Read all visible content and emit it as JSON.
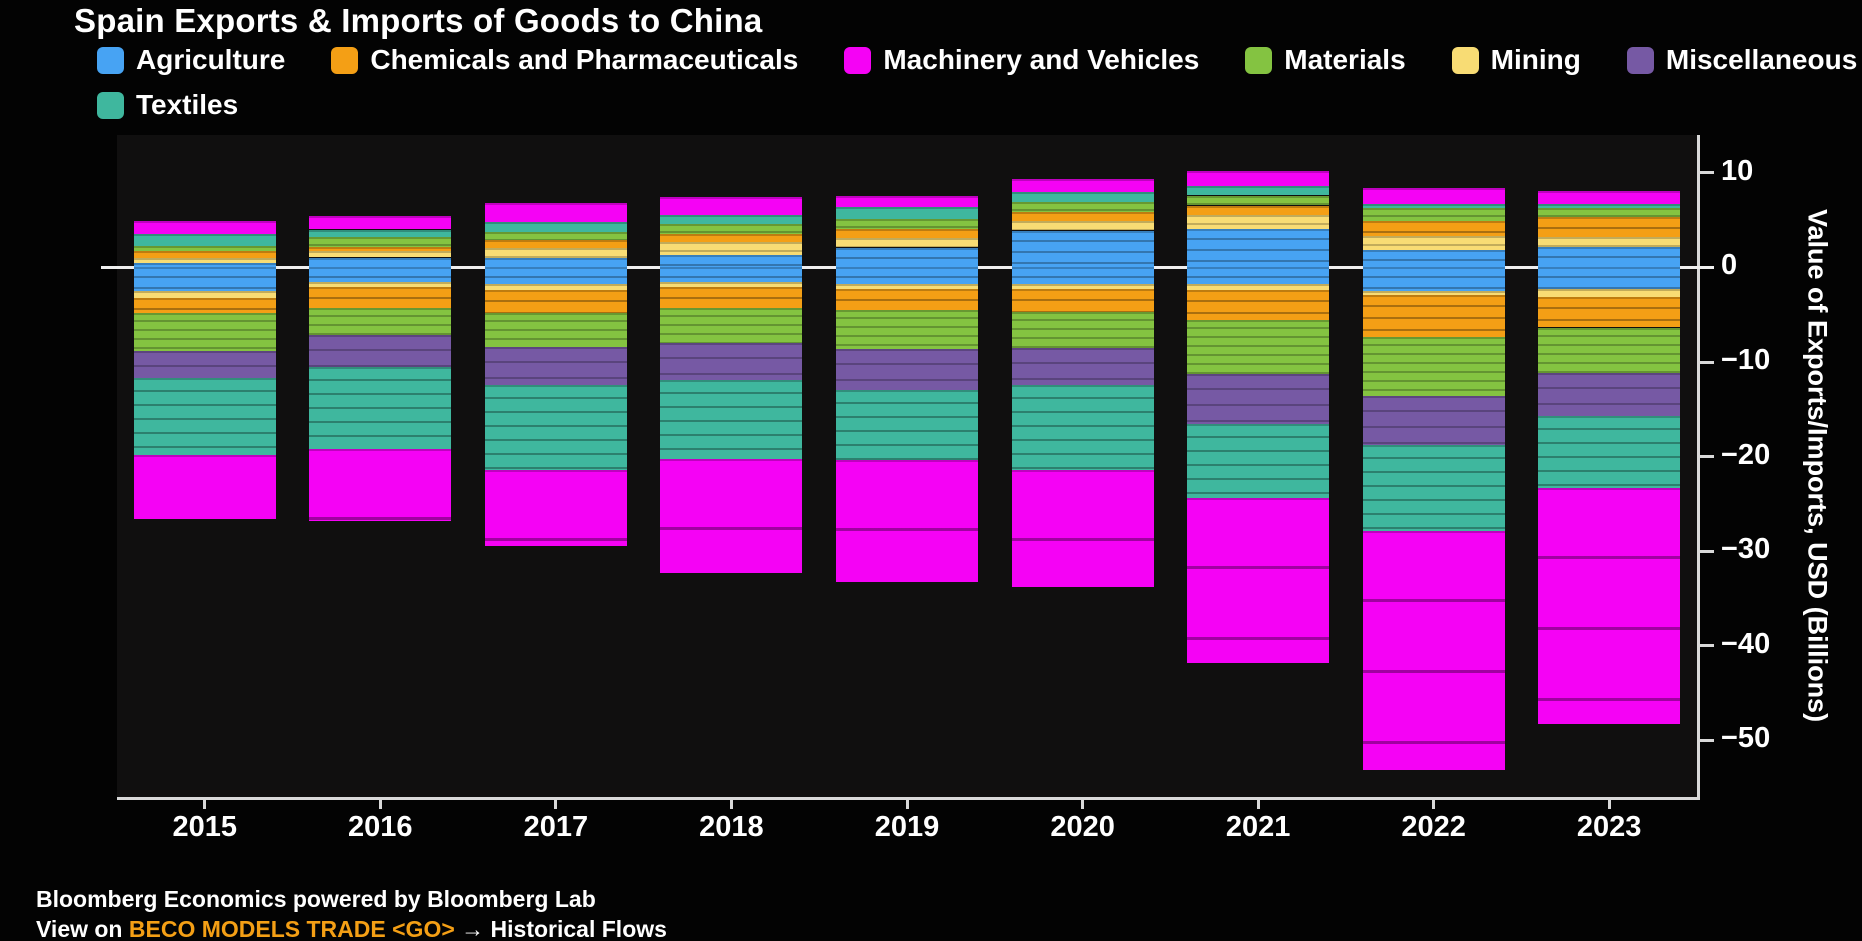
{
  "header": {
    "title": "Spain Exports & Imports of Goods to China"
  },
  "legend": {
    "rows": [
      [
        "agriculture",
        "chemicals",
        "machinery",
        "materials",
        "mining",
        "miscellaneous"
      ],
      [
        "textiles"
      ]
    ]
  },
  "colors": {
    "agriculture": "#47a3f3",
    "chemicals": "#f49f15",
    "machinery": "#f502f5",
    "materials": "#84c341",
    "mining": "#f8dc74",
    "miscellaneous": "#7659a4",
    "textiles": "#3fb79e",
    "axis": "#d9d9d9",
    "zero_line": "#efefef",
    "background": "#030303",
    "plot_background": "#100f0f",
    "footer_link": "#f49f15"
  },
  "chart_data": {
    "type": "bar",
    "stacked": true,
    "title": "Spain Exports & Imports of Goods to China",
    "xlabel": "",
    "ylabel": "Value of Exports/Imports, USD (Billions)",
    "categories": [
      "2015",
      "2016",
      "2017",
      "2018",
      "2019",
      "2020",
      "2021",
      "2022",
      "2023"
    ],
    "ylim": [
      -56,
      14
    ],
    "grid": false,
    "legend_position": "top",
    "yticks": [
      {
        "label": "10",
        "value": 10
      },
      {
        "label": "0",
        "value": 0
      },
      {
        "label": "−10",
        "value": -10
      },
      {
        "label": "−20",
        "value": -20
      },
      {
        "label": "−30",
        "value": -30
      },
      {
        "label": "−40",
        "value": -40
      },
      {
        "label": "−50",
        "value": -50
      }
    ],
    "stack_order_exports": [
      "agriculture",
      "mining",
      "chemicals",
      "materials",
      "textiles",
      "machinery"
    ],
    "stack_order_imports": [
      "agriculture",
      "mining",
      "chemicals",
      "materials",
      "miscellaneous",
      "textiles",
      "machinery"
    ],
    "series": [
      {
        "key": "agriculture",
        "name": "Agriculture",
        "exports": [
          0.45,
          1.05,
          1.0,
          1.3,
          2.1,
          3.9,
          4.1,
          1.85,
          2.15
        ],
        "imports": [
          -2.5,
          -1.55,
          -1.8,
          -1.55,
          -1.75,
          -1.75,
          -1.8,
          -2.5,
          -2.25
        ]
      },
      {
        "key": "chemicals",
        "name": "Chemicals and Pharmaceuticals",
        "exports": [
          0.75,
          0.5,
          0.8,
          0.9,
          0.9,
          0.9,
          1.05,
          1.6,
          2.1
        ],
        "imports": [
          -1.6,
          -2.2,
          -2.5,
          -2.2,
          -2.3,
          -2.5,
          -3.2,
          -4.5,
          -3.2
        ]
      },
      {
        "key": "machinery",
        "name": "Machinery and Vehicles",
        "exports": [
          1.4,
          1.4,
          2.0,
          1.95,
          1.2,
          1.4,
          1.5,
          1.65,
          1.35
        ],
        "imports": [
          -6.75,
          -7.6,
          -8.05,
          -12.05,
          -12.9,
          -12.4,
          -17.4,
          -25.2,
          -24.9
        ]
      },
      {
        "key": "materials",
        "name": "Materials",
        "exports": [
          0.55,
          1.0,
          0.9,
          1.05,
          1.05,
          1.05,
          1.05,
          1.35,
          0.9
        ],
        "imports": [
          -4.05,
          -2.85,
          -3.6,
          -3.75,
          -4.1,
          -3.75,
          -5.7,
          -6.2,
          -4.8
        ]
      },
      {
        "key": "mining",
        "name": "Mining",
        "exports": [
          0.55,
          0.65,
          1.05,
          1.35,
          1.05,
          1.05,
          1.4,
          1.5,
          1.1
        ],
        "imports": [
          -0.7,
          -0.5,
          -0.55,
          -0.5,
          -0.5,
          -0.5,
          -0.6,
          -0.4,
          -0.9
        ]
      },
      {
        "key": "miscellaneous",
        "name": "Miscellaneous",
        "exports": [
          0,
          0,
          0,
          0,
          0,
          0,
          0,
          0,
          0
        ],
        "imports": [
          -2.85,
          -3.4,
          -4.0,
          -3.9,
          -4.3,
          -3.9,
          -5.3,
          -5.2,
          -4.6
        ]
      },
      {
        "key": "textiles",
        "name": "Textiles",
        "exports": [
          1.25,
          0.8,
          1.05,
          0.9,
          1.3,
          1.05,
          1.05,
          0.45,
          0.5
        ],
        "imports": [
          -8.15,
          -8.7,
          -9.0,
          -8.35,
          -7.45,
          -9.0,
          -7.8,
          -9.1,
          -7.6
        ]
      }
    ],
    "totals": {
      "exports": [
        4.95,
        5.4,
        6.8,
        7.45,
        7.6,
        9.35,
        10.15,
        8.4,
        8.1
      ],
      "imports": [
        -26.6,
        -26.8,
        -29.5,
        -32.3,
        -33.3,
        -33.8,
        -41.8,
        -53.1,
        -48.25
      ]
    }
  },
  "footer": {
    "line1": "Bloomberg Economics powered by Bloomberg Lab",
    "line2_prefix": "View on ",
    "line2_link": "BECO MODELS TRADE <GO>",
    "line2_suffix": " → Historical Flows"
  }
}
